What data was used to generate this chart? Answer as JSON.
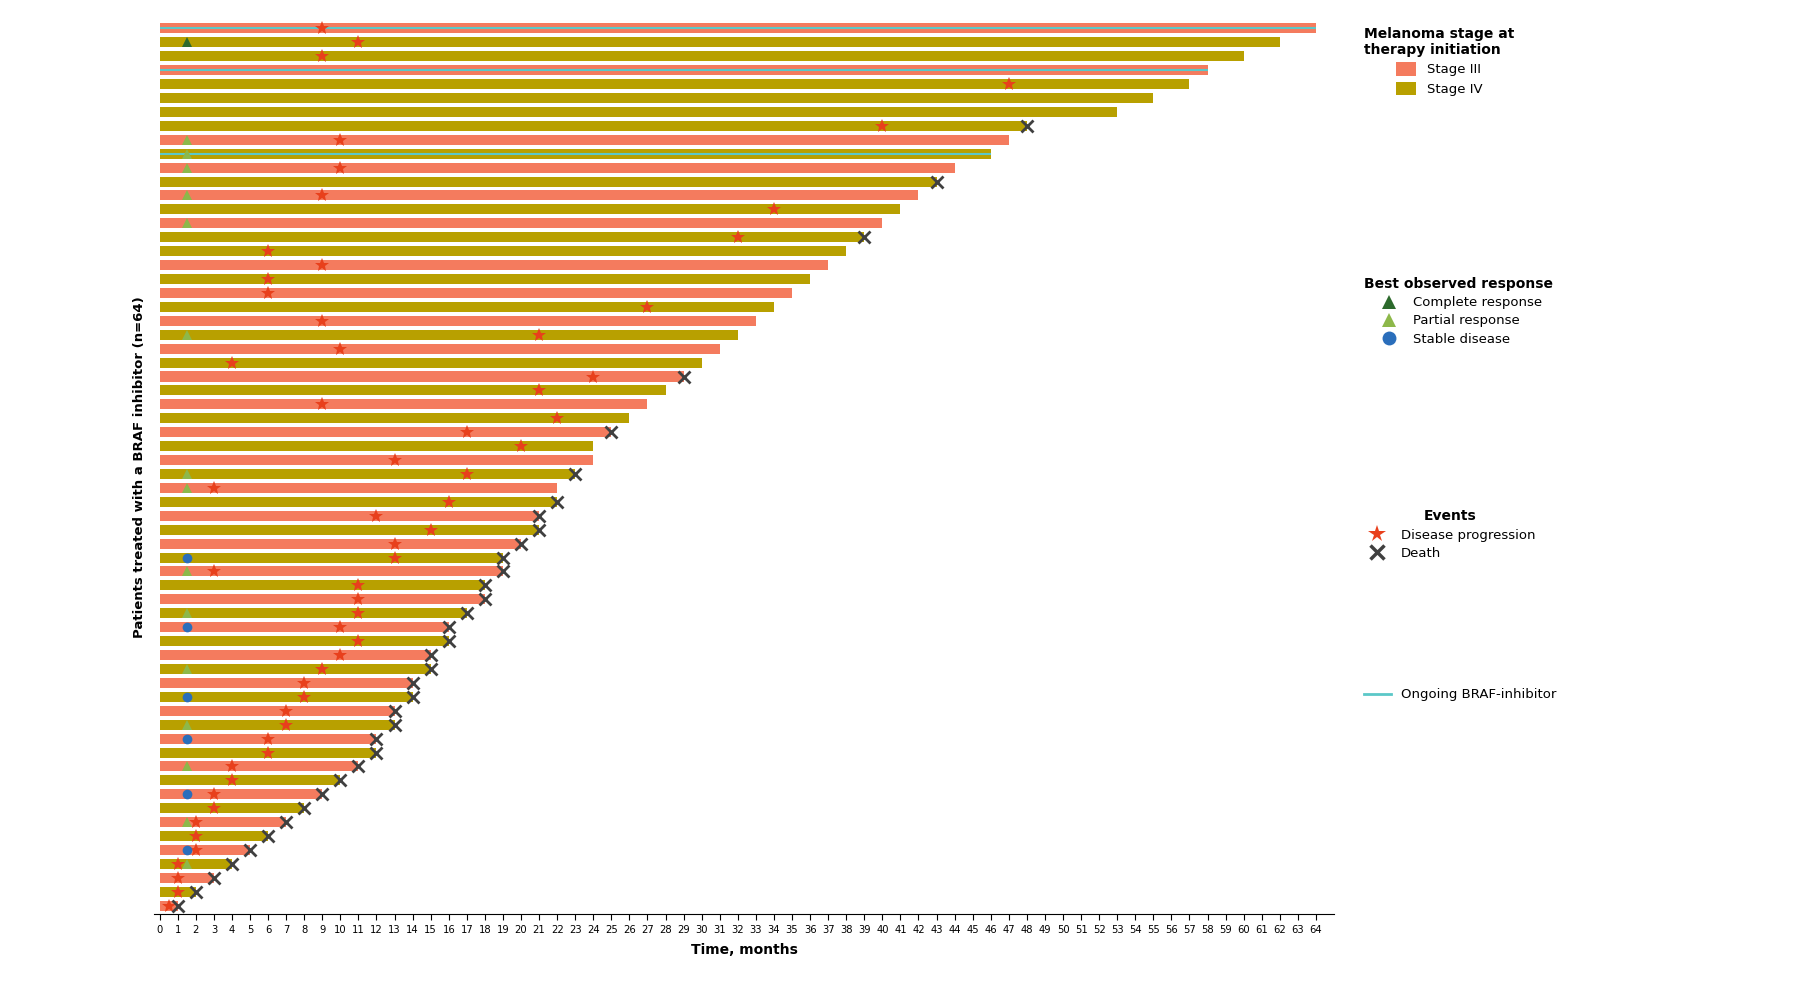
{
  "xlabel": "Time, months",
  "ylabel": "Patients treated with a BRAF inhibitor (n=64)",
  "xlim": [
    -0.3,
    65
  ],
  "xticks": [
    0,
    1,
    2,
    3,
    4,
    5,
    6,
    7,
    8,
    9,
    10,
    11,
    12,
    13,
    14,
    15,
    16,
    17,
    18,
    19,
    20,
    21,
    22,
    23,
    24,
    25,
    26,
    27,
    28,
    29,
    30,
    31,
    32,
    33,
    34,
    35,
    36,
    37,
    38,
    39,
    40,
    41,
    42,
    43,
    44,
    45,
    46,
    47,
    48,
    49,
    50,
    51,
    52,
    53,
    54,
    55,
    56,
    57,
    58,
    59,
    60,
    61,
    62,
    63,
    64
  ],
  "stage_III_color": "#F47B5E",
  "stage_IV_color": "#B8A000",
  "complete_response_color": "#2D6A2D",
  "partial_response_color": "#8DB84A",
  "stable_disease_color": "#2A6EBB",
  "progression_color": "#E8401C",
  "death_color": "#404040",
  "ongoing_color": "#5BC8C8",
  "patients": [
    {
      "id": 1,
      "os": 64,
      "stage": "III",
      "ongoing": true,
      "prog": 9,
      "resp": "none",
      "death": null
    },
    {
      "id": 2,
      "os": 62,
      "stage": "IV",
      "ongoing": false,
      "prog": 11,
      "resp": "complete",
      "death": null
    },
    {
      "id": 3,
      "os": 60,
      "stage": "IV",
      "ongoing": false,
      "prog": 9,
      "resp": "none",
      "death": null
    },
    {
      "id": 4,
      "os": 58,
      "stage": "III",
      "ongoing": true,
      "prog": null,
      "resp": "none",
      "death": null
    },
    {
      "id": 5,
      "os": 57,
      "stage": "IV",
      "ongoing": false,
      "prog": 47,
      "resp": "none",
      "death": null
    },
    {
      "id": 6,
      "os": 55,
      "stage": "IV",
      "ongoing": false,
      "prog": null,
      "resp": "none",
      "death": null
    },
    {
      "id": 7,
      "os": 53,
      "stage": "IV",
      "ongoing": false,
      "prog": null,
      "resp": "none",
      "death": null
    },
    {
      "id": 8,
      "os": 48,
      "stage": "IV",
      "ongoing": false,
      "prog": 40,
      "resp": "none",
      "death": 48
    },
    {
      "id": 9,
      "os": 47,
      "stage": "III",
      "ongoing": false,
      "prog": 10,
      "resp": "partial",
      "death": null
    },
    {
      "id": 10,
      "os": 46,
      "stage": "IV",
      "ongoing": true,
      "prog": null,
      "resp": "partial",
      "death": null
    },
    {
      "id": 11,
      "os": 44,
      "stage": "III",
      "ongoing": false,
      "prog": 10,
      "resp": "partial",
      "death": null
    },
    {
      "id": 12,
      "os": 43,
      "stage": "IV",
      "ongoing": false,
      "prog": null,
      "resp": "none",
      "death": 43
    },
    {
      "id": 13,
      "os": 42,
      "stage": "III",
      "ongoing": false,
      "prog": 9,
      "resp": "partial",
      "death": null
    },
    {
      "id": 14,
      "os": 41,
      "stage": "IV",
      "ongoing": false,
      "prog": 34,
      "resp": "none",
      "death": null
    },
    {
      "id": 15,
      "os": 40,
      "stage": "III",
      "ongoing": false,
      "prog": null,
      "resp": "partial",
      "death": null
    },
    {
      "id": 16,
      "os": 39,
      "stage": "IV",
      "ongoing": false,
      "prog": 32,
      "resp": "none",
      "death": 39
    },
    {
      "id": 17,
      "os": 38,
      "stage": "IV",
      "ongoing": false,
      "prog": 6,
      "resp": "none",
      "death": null
    },
    {
      "id": 18,
      "os": 37,
      "stage": "III",
      "ongoing": false,
      "prog": 9,
      "resp": "none",
      "death": null
    },
    {
      "id": 19,
      "os": 36,
      "stage": "IV",
      "ongoing": false,
      "prog": 6,
      "resp": "none",
      "death": null
    },
    {
      "id": 20,
      "os": 35,
      "stage": "III",
      "ongoing": false,
      "prog": 6,
      "resp": "none",
      "death": null
    },
    {
      "id": 21,
      "os": 34,
      "stage": "IV",
      "ongoing": false,
      "prog": 27,
      "resp": "none",
      "death": null
    },
    {
      "id": 22,
      "os": 33,
      "stage": "III",
      "ongoing": false,
      "prog": 9,
      "resp": "none",
      "death": null
    },
    {
      "id": 23,
      "os": 32,
      "stage": "IV",
      "ongoing": false,
      "prog": 21,
      "resp": "partial",
      "death": null
    },
    {
      "id": 24,
      "os": 31,
      "stage": "III",
      "ongoing": false,
      "prog": 10,
      "resp": "none",
      "death": null
    },
    {
      "id": 25,
      "os": 30,
      "stage": "IV",
      "ongoing": false,
      "prog": 4,
      "resp": "none",
      "death": null
    },
    {
      "id": 26,
      "os": 29,
      "stage": "III",
      "ongoing": false,
      "prog": 24,
      "resp": "none",
      "death": 29
    },
    {
      "id": 27,
      "os": 28,
      "stage": "IV",
      "ongoing": false,
      "prog": 21,
      "resp": "none",
      "death": null
    },
    {
      "id": 28,
      "os": 27,
      "stage": "III",
      "ongoing": false,
      "prog": 9,
      "resp": "none",
      "death": null
    },
    {
      "id": 29,
      "os": 26,
      "stage": "IV",
      "ongoing": false,
      "prog": 22,
      "resp": "none",
      "death": null
    },
    {
      "id": 30,
      "os": 25,
      "stage": "III",
      "ongoing": false,
      "prog": 17,
      "resp": "none",
      "death": 25
    },
    {
      "id": 31,
      "os": 24,
      "stage": "IV",
      "ongoing": false,
      "prog": 20,
      "resp": "none",
      "death": null
    },
    {
      "id": 32,
      "os": 24,
      "stage": "III",
      "ongoing": false,
      "prog": 13,
      "resp": "none",
      "death": null
    },
    {
      "id": 33,
      "os": 23,
      "stage": "IV",
      "ongoing": false,
      "prog": 17,
      "resp": "partial",
      "death": 23
    },
    {
      "id": 34,
      "os": 22,
      "stage": "III",
      "ongoing": false,
      "prog": 3,
      "resp": "partial",
      "death": null
    },
    {
      "id": 35,
      "os": 22,
      "stage": "IV",
      "ongoing": false,
      "prog": 16,
      "resp": "none",
      "death": 22
    },
    {
      "id": 36,
      "os": 21,
      "stage": "III",
      "ongoing": false,
      "prog": 12,
      "resp": "none",
      "death": 21
    },
    {
      "id": 37,
      "os": 21,
      "stage": "IV",
      "ongoing": false,
      "prog": 15,
      "resp": "none",
      "death": 21
    },
    {
      "id": 38,
      "os": 20,
      "stage": "III",
      "ongoing": false,
      "prog": 13,
      "resp": "none",
      "death": 20
    },
    {
      "id": 39,
      "os": 19,
      "stage": "IV",
      "ongoing": false,
      "prog": 13,
      "resp": "stable",
      "death": 19
    },
    {
      "id": 40,
      "os": 19,
      "stage": "III",
      "ongoing": false,
      "prog": 3,
      "resp": "partial",
      "death": 19
    },
    {
      "id": 41,
      "os": 18,
      "stage": "IV",
      "ongoing": false,
      "prog": 11,
      "resp": "none",
      "death": 18
    },
    {
      "id": 42,
      "os": 18,
      "stage": "III",
      "ongoing": false,
      "prog": 11,
      "resp": "none",
      "death": 18
    },
    {
      "id": 43,
      "os": 17,
      "stage": "IV",
      "ongoing": false,
      "prog": 11,
      "resp": "partial",
      "death": 17
    },
    {
      "id": 44,
      "os": 16,
      "stage": "III",
      "ongoing": false,
      "prog": 10,
      "resp": "stable",
      "death": 16
    },
    {
      "id": 45,
      "os": 16,
      "stage": "IV",
      "ongoing": false,
      "prog": 11,
      "resp": "none",
      "death": 16
    },
    {
      "id": 46,
      "os": 15,
      "stage": "III",
      "ongoing": false,
      "prog": 10,
      "resp": "none",
      "death": 15
    },
    {
      "id": 47,
      "os": 15,
      "stage": "IV",
      "ongoing": false,
      "prog": 9,
      "resp": "partial",
      "death": 15
    },
    {
      "id": 48,
      "os": 14,
      "stage": "III",
      "ongoing": false,
      "prog": 8,
      "resp": "none",
      "death": 14
    },
    {
      "id": 49,
      "os": 14,
      "stage": "IV",
      "ongoing": false,
      "prog": 8,
      "resp": "stable",
      "death": 14
    },
    {
      "id": 50,
      "os": 13,
      "stage": "III",
      "ongoing": false,
      "prog": 7,
      "resp": "none",
      "death": 13
    },
    {
      "id": 51,
      "os": 13,
      "stage": "IV",
      "ongoing": false,
      "prog": 7,
      "resp": "partial",
      "death": 13
    },
    {
      "id": 52,
      "os": 12,
      "stage": "III",
      "ongoing": false,
      "prog": 6,
      "resp": "stable",
      "death": 12
    },
    {
      "id": 53,
      "os": 12,
      "stage": "IV",
      "ongoing": false,
      "prog": 6,
      "resp": "none",
      "death": 12
    },
    {
      "id": 54,
      "os": 11,
      "stage": "III",
      "ongoing": false,
      "prog": 4,
      "resp": "partial",
      "death": 11
    },
    {
      "id": 55,
      "os": 10,
      "stage": "IV",
      "ongoing": false,
      "prog": 4,
      "resp": "none",
      "death": 10
    },
    {
      "id": 56,
      "os": 9,
      "stage": "III",
      "ongoing": false,
      "prog": 3,
      "resp": "stable",
      "death": 9
    },
    {
      "id": 57,
      "os": 8,
      "stage": "IV",
      "ongoing": false,
      "prog": 3,
      "resp": "none",
      "death": 8
    },
    {
      "id": 58,
      "os": 7,
      "stage": "III",
      "ongoing": false,
      "prog": 2,
      "resp": "partial",
      "death": 7
    },
    {
      "id": 59,
      "os": 6,
      "stage": "IV",
      "ongoing": false,
      "prog": 2,
      "resp": "none",
      "death": 6
    },
    {
      "id": 60,
      "os": 5,
      "stage": "III",
      "ongoing": false,
      "prog": 2,
      "resp": "stable",
      "death": 5
    },
    {
      "id": 61,
      "os": 4,
      "stage": "IV",
      "ongoing": false,
      "prog": 1,
      "resp": "partial",
      "death": 4
    },
    {
      "id": 62,
      "os": 3,
      "stage": "III",
      "ongoing": false,
      "prog": 1,
      "resp": "none",
      "death": 3
    },
    {
      "id": 63,
      "os": 2,
      "stage": "IV",
      "ongoing": false,
      "prog": 1,
      "resp": "none",
      "death": 2
    },
    {
      "id": 64,
      "os": 1,
      "stage": "III",
      "ongoing": false,
      "prog": 0.5,
      "resp": "none",
      "death": 1
    }
  ]
}
